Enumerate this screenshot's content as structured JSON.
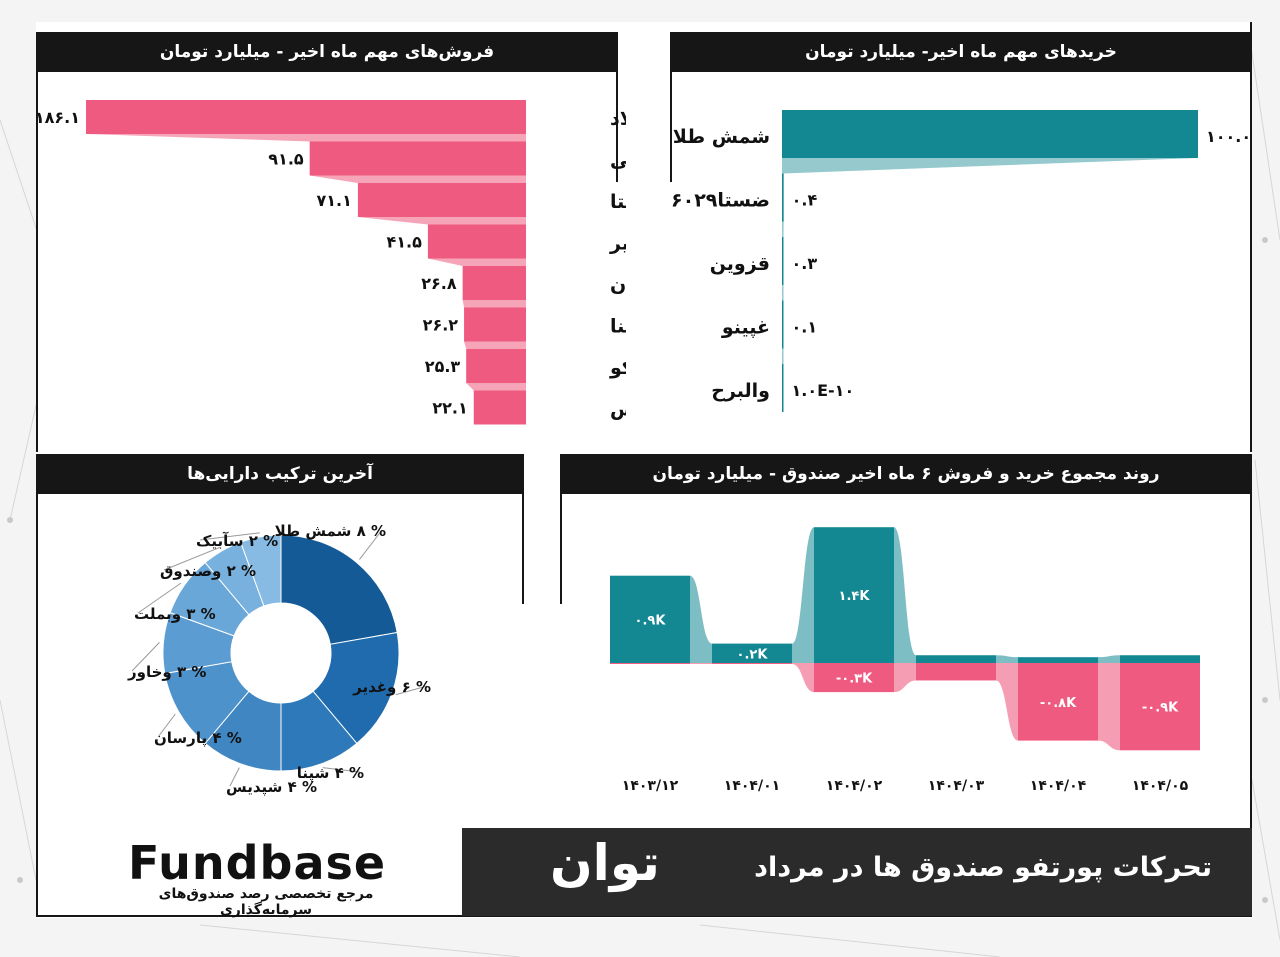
{
  "header": {
    "sales_title": "فروش‌های مهم ماه اخیر - میلیارد تومان",
    "purchases_title": "خریدهای مهم ماه اخیر- میلیارد تومان",
    "assets_title": "آخرین ترکیب دارایی‌ها",
    "trend_title": "روند مجموع خرید و فروش ۶ ماه اخیر صندوق - میلیارد تومان"
  },
  "footer": {
    "subtitle": "تحرکات پورتفو صندوق ها در مرداد",
    "fund_name": "توان",
    "logo_text": "Fundbase",
    "logo_tagline": "مرجع تخصصی رصد صندوق‌های سرمایه‌گذاری"
  },
  "colors": {
    "sales": "#ef5b80",
    "purchases": "#138893",
    "pie": [
      "#135a96",
      "#1f6bae",
      "#2e79b9",
      "#3f86c3",
      "#4e92cb",
      "#5b9cd2",
      "#6aa7d9",
      "#79b1de",
      "#88bbe3"
    ],
    "dark": "#161616"
  },
  "chart_data": [
    {
      "type": "bar",
      "orientation": "horizontal",
      "title": "فروش‌های مهم ماه اخیر - میلیارد تومان",
      "categories": [
        "فولاد",
        "فملی",
        "شستا",
        "وغدیر",
        "پارسان",
        "شپنا",
        "تاصیکو",
        "شپدیس"
      ],
      "values": [
        186.1,
        91.5,
        71.1,
        41.5,
        26.8,
        26.2,
        25.3,
        22.1
      ],
      "value_labels": [
        "۱۸۶.۱",
        "۹۱.۵",
        "۷۱.۱",
        "۴۱.۵",
        "۲۶.۸",
        "۲۶.۲",
        "۲۵.۳",
        "۲۲.۱"
      ]
    },
    {
      "type": "bar",
      "orientation": "horizontal",
      "title": "خریدهای مهم ماه اخیر- میلیارد تومان",
      "categories": [
        "شمش طلا",
        "ضستا۶۰۲۹",
        "قزوین",
        "غپینو",
        "والبرح"
      ],
      "values": [
        100.0,
        0.4,
        0.3,
        0.1,
        1e-10
      ],
      "value_labels": [
        "۱۰۰.۰",
        "۰.۴",
        "۰.۳",
        "۰.۱",
        "۱.۰E-۱۰"
      ]
    },
    {
      "type": "pie",
      "title": "آخرین ترکیب دارایی‌ها",
      "labels": [
        "شمش طلا",
        "وغدیر",
        "شپنا",
        "شپدیس",
        "پارسان",
        "وخاور",
        "وبملت",
        "وصندوق",
        "سآبیک"
      ],
      "values": [
        8,
        6,
        4,
        4,
        4,
        3,
        3,
        2,
        2
      ],
      "slice_labels": [
        "% ۸ شمش طلا",
        "% ۶ وغدیر",
        "% ۴ شپنا",
        "% ۴ شپدیس",
        "% ۴ پارسان",
        "% ۳ وخاور",
        "% ۳ وبملت",
        "% ۲ وصندوق",
        "% ۲ سآبیک"
      ]
    },
    {
      "type": "bar",
      "title": "روند مجموع خرید و فروش ۶ ماه اخیر صندوق - میلیارد تومان",
      "categories": [
        "۱۴۰۳/۱۲",
        "۱۴۰۴/۰۱",
        "۱۴۰۴/۰۲",
        "۱۴۰۴/۰۳",
        "۱۴۰۴/۰۴",
        "۱۴۰۴/۰۵"
      ],
      "series": [
        {
          "values": [
            900,
            200,
            1400,
            80,
            60,
            80
          ],
          "value_labels": [
            "۰.۹K",
            "۰.۲K",
            "۱.۴K",
            "",
            "",
            ""
          ]
        },
        {
          "values": [
            -10,
            -10,
            -300,
            -180,
            -800,
            -900
          ],
          "value_labels": [
            "",
            "",
            "-۰.۳K",
            "",
            "-۰.۸K",
            "-۰.۹K"
          ]
        }
      ]
    }
  ]
}
